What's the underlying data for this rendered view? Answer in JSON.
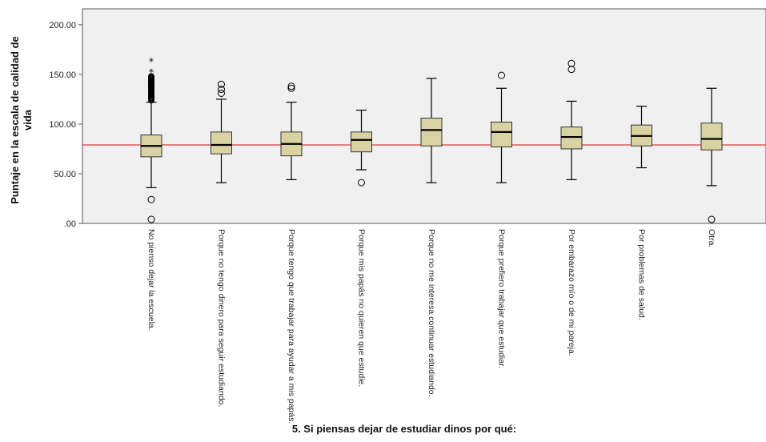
{
  "chart_data": {
    "type": "boxplot",
    "title": "",
    "xlabel": "5. Si piensas dejar de estudiar dinos por qué:",
    "ylabel_lines": [
      "Puntaje en la escala de calidad de",
      "vida"
    ],
    "ylim": [
      0,
      216
    ],
    "yticks": [
      {
        "value": 0,
        "label": ".00"
      },
      {
        "value": 50,
        "label": "50.00"
      },
      {
        "value": 100,
        "label": "100.00"
      },
      {
        "value": 150,
        "label": "150.00"
      },
      {
        "value": 200,
        "label": "200.00"
      }
    ],
    "reference_line": 79,
    "colors": {
      "box_fill": "#d9d3a3",
      "reference_line": "#d9403a",
      "plot_background": "#f0f0f0"
    },
    "grid": false,
    "categories": [
      "No pienso dejar la escuela.",
      "Porque no tengo dinero para seguir estudiando.",
      "Porque tengo que trabajar para ayudar a mis papás.",
      "Porque mis papás no quieren que estudie.",
      "Porque no me interesa continuar estudiando.",
      "Porque prefiero trabajar que estudiar.",
      "Por embarazo mío o de mi pareja.",
      "Por problemas de salud.",
      "Otra."
    ],
    "boxes": [
      {
        "whisker_low": 36,
        "q1": 67,
        "median": 78,
        "q3": 89,
        "whisker_high": 122,
        "outliers": [
          24,
          4
        ],
        "dense_outliers": [
          124,
          148
        ],
        "extremes": [
          152,
          163
        ]
      },
      {
        "whisker_low": 41,
        "q1": 70,
        "median": 79,
        "q3": 92,
        "whisker_high": 125,
        "outliers": [
          131,
          135,
          140
        ],
        "dense_outliers": [],
        "extremes": []
      },
      {
        "whisker_low": 44,
        "q1": 68,
        "median": 80,
        "q3": 92,
        "whisker_high": 122,
        "outliers": [
          136,
          138
        ],
        "dense_outliers": [],
        "extremes": []
      },
      {
        "whisker_low": 54,
        "q1": 72,
        "median": 84,
        "q3": 92,
        "whisker_high": 114,
        "outliers": [
          41
        ],
        "dense_outliers": [],
        "extremes": []
      },
      {
        "whisker_low": 41,
        "q1": 78,
        "median": 94,
        "q3": 106,
        "whisker_high": 146,
        "outliers": [],
        "dense_outliers": [],
        "extremes": []
      },
      {
        "whisker_low": 41,
        "q1": 77,
        "median": 92,
        "q3": 102,
        "whisker_high": 136,
        "outliers": [
          149
        ],
        "dense_outliers": [],
        "extremes": []
      },
      {
        "whisker_low": 44,
        "q1": 75,
        "median": 87,
        "q3": 97,
        "whisker_high": 123,
        "outliers": [
          155,
          161
        ],
        "dense_outliers": [],
        "extremes": []
      },
      {
        "whisker_low": 56,
        "q1": 78,
        "median": 88,
        "q3": 99,
        "whisker_high": 118,
        "outliers": [],
        "dense_outliers": [],
        "extremes": []
      },
      {
        "whisker_low": 38,
        "q1": 74,
        "median": 85,
        "q3": 101,
        "whisker_high": 136,
        "outliers": [
          4
        ],
        "dense_outliers": [],
        "extremes": []
      }
    ]
  }
}
